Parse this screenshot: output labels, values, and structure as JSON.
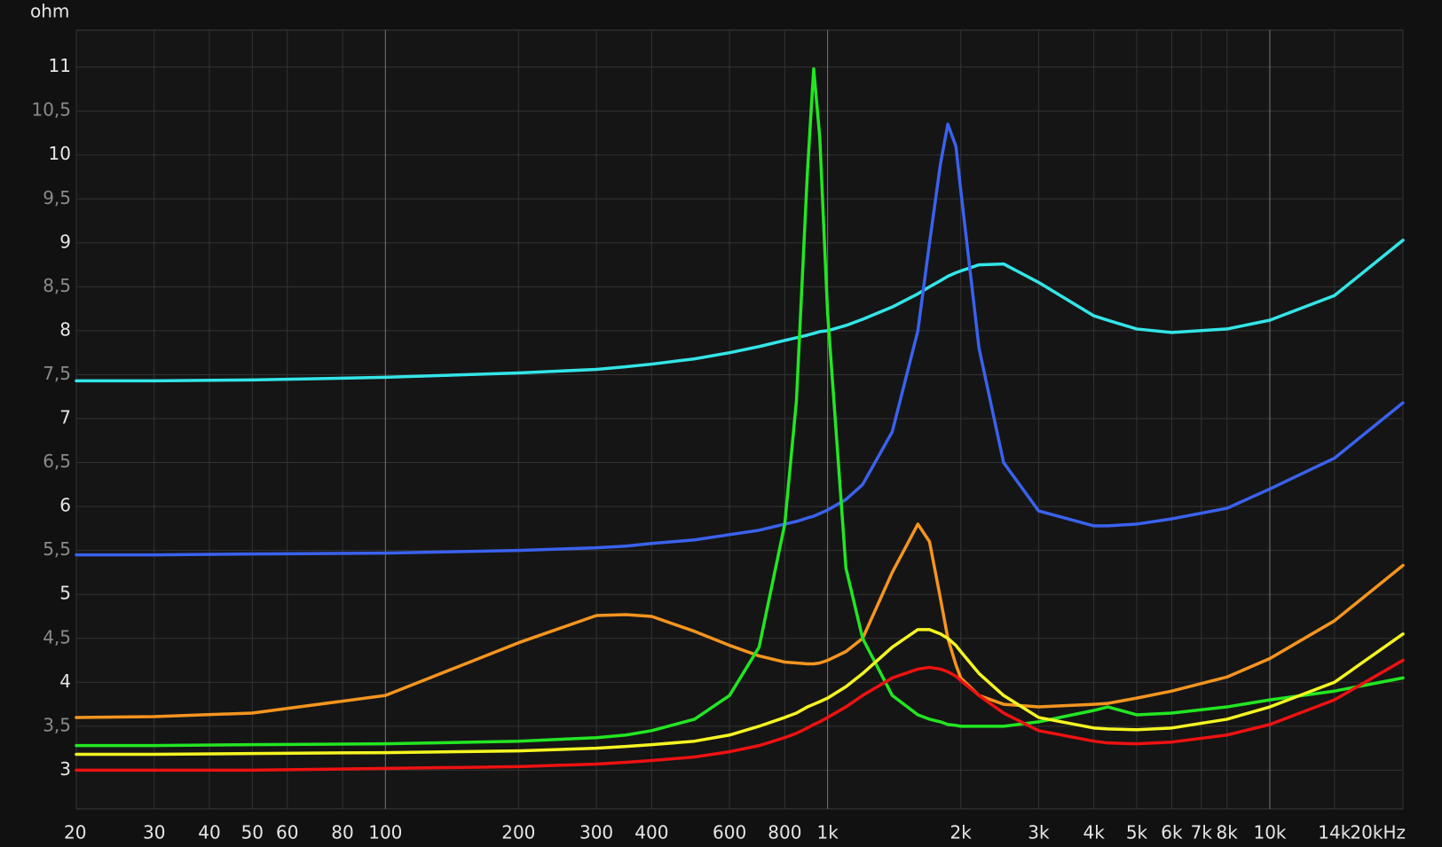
{
  "chart_data": {
    "type": "line",
    "y_label": "ohm",
    "xscale": "log",
    "grid": true,
    "xlim": [
      20,
      20000
    ],
    "ylim": [
      2.56,
      11.42
    ],
    "xticks": [
      20,
      30,
      40,
      50,
      60,
      80,
      100,
      200,
      300,
      400,
      600,
      800,
      {
        "value": 1000,
        "label": "1k"
      },
      {
        "value": 2000,
        "label": "2k"
      },
      {
        "value": 3000,
        "label": "3k"
      },
      {
        "value": 4000,
        "label": "4k"
      },
      {
        "value": 5000,
        "label": "5k"
      },
      {
        "value": 6000,
        "label": "6k"
      },
      {
        "value": 7000,
        "label": "7k"
      },
      {
        "value": 8000,
        "label": "8k"
      },
      {
        "value": 10000,
        "label": "10k"
      },
      {
        "value": 14000,
        "label": "14k"
      },
      {
        "value": 20000,
        "label": "20kHz"
      }
    ],
    "yticks": [
      3,
      {
        "value": 3.5,
        "label": "3,5"
      },
      4,
      {
        "value": 4.5,
        "label": "4,5"
      },
      5,
      {
        "value": 5.5,
        "label": "5,5"
      },
      6,
      {
        "value": 6.5,
        "label": "6,5"
      },
      7,
      {
        "value": 7.5,
        "label": "7,5"
      },
      8,
      {
        "value": 8.5,
        "label": "8,5"
      },
      9,
      {
        "value": 9.5,
        "label": "9,5"
      },
      10,
      {
        "value": 10.5,
        "label": "10,5"
      },
      11
    ],
    "x": [
      20,
      30,
      50,
      100,
      200,
      300,
      350,
      400,
      500,
      600,
      700,
      800,
      850,
      900,
      930,
      960,
      1000,
      1100,
      1200,
      1400,
      1600,
      1700,
      1800,
      1870,
      1950,
      2000,
      2200,
      2500,
      3000,
      4000,
      4300,
      5000,
      6000,
      8000,
      10000,
      14000,
      20000
    ],
    "series": [
      {
        "color": "#33e5e8",
        "values": [
          7.43,
          7.43,
          7.44,
          7.47,
          7.52,
          7.56,
          7.59,
          7.62,
          7.68,
          7.75,
          7.82,
          7.89,
          7.92,
          7.95,
          7.97,
          7.99,
          8.0,
          8.06,
          8.13,
          8.27,
          8.42,
          8.5,
          8.57,
          8.62,
          8.66,
          8.68,
          8.75,
          8.76,
          8.55,
          8.17,
          8.12,
          8.02,
          7.98,
          8.02,
          8.12,
          8.4,
          9.03
        ]
      },
      {
        "color": "#3a62ee",
        "values": [
          5.45,
          5.45,
          5.46,
          5.47,
          5.5,
          5.53,
          5.55,
          5.58,
          5.62,
          5.68,
          5.73,
          5.8,
          5.83,
          5.87,
          5.89,
          5.92,
          5.96,
          6.08,
          6.25,
          6.85,
          8.0,
          9.0,
          9.9,
          10.35,
          10.1,
          9.6,
          7.8,
          6.5,
          5.95,
          5.78,
          5.78,
          5.8,
          5.86,
          5.98,
          6.2,
          6.55,
          7.18
        ]
      },
      {
        "color": "#f5951e",
        "values": [
          3.6,
          3.61,
          3.65,
          3.85,
          4.45,
          4.76,
          4.77,
          4.75,
          4.58,
          4.42,
          4.3,
          4.23,
          4.22,
          4.21,
          4.21,
          4.22,
          4.25,
          4.35,
          4.5,
          5.25,
          5.8,
          5.6,
          4.95,
          4.5,
          4.2,
          4.05,
          3.85,
          3.75,
          3.72,
          3.75,
          3.76,
          3.82,
          3.9,
          4.06,
          4.27,
          4.7,
          5.33
        ]
      },
      {
        "color": "#22e622",
        "values": [
          3.28,
          3.28,
          3.29,
          3.3,
          3.33,
          3.37,
          3.4,
          3.45,
          3.58,
          3.85,
          4.4,
          5.8,
          7.2,
          9.8,
          10.98,
          10.2,
          8.2,
          5.3,
          4.5,
          3.85,
          3.63,
          3.58,
          3.55,
          3.52,
          3.51,
          3.5,
          3.5,
          3.5,
          3.55,
          3.68,
          3.72,
          3.63,
          3.65,
          3.72,
          3.8,
          3.9,
          4.05
        ]
      },
      {
        "color": "#f5f522",
        "values": [
          3.18,
          3.18,
          3.19,
          3.2,
          3.22,
          3.25,
          3.27,
          3.29,
          3.33,
          3.4,
          3.5,
          3.6,
          3.65,
          3.72,
          3.75,
          3.78,
          3.82,
          3.95,
          4.1,
          4.4,
          4.6,
          4.6,
          4.55,
          4.5,
          4.42,
          4.35,
          4.1,
          3.85,
          3.6,
          3.48,
          3.47,
          3.46,
          3.48,
          3.58,
          3.72,
          4.0,
          4.55
        ]
      },
      {
        "color": "#ee1111",
        "values": [
          3.0,
          3.0,
          3.0,
          3.02,
          3.04,
          3.07,
          3.09,
          3.11,
          3.15,
          3.21,
          3.28,
          3.37,
          3.42,
          3.48,
          3.52,
          3.55,
          3.6,
          3.72,
          3.85,
          4.05,
          4.15,
          4.17,
          4.15,
          4.12,
          4.07,
          4.02,
          3.85,
          3.65,
          3.45,
          3.33,
          3.31,
          3.3,
          3.32,
          3.4,
          3.52,
          3.8,
          4.25
        ]
      }
    ]
  }
}
